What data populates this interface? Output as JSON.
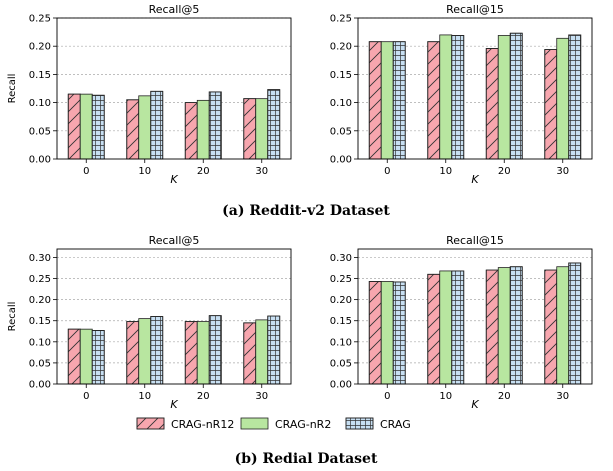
{
  "captions": {
    "top": "(a) Reddit-v2 Dataset",
    "bottom": "(b) Redial Dataset"
  },
  "legend": {
    "position": "bottom-center",
    "items": [
      {
        "label": "CRAG-nR12",
        "color": "#f7a6ae",
        "hatch": "diagonal"
      },
      {
        "label": "CRAG-nR2",
        "color": "#b8e6a0",
        "hatch": "none"
      },
      {
        "label": "CRAG",
        "color": "#c7dff2",
        "hatch": "grid"
      }
    ]
  },
  "chart_data": [
    {
      "type": "bar",
      "title": "Recall@5",
      "xlabel": "K",
      "ylabel": "Recall",
      "categories": [
        "0",
        "10",
        "20",
        "30"
      ],
      "ylim": [
        0,
        0.25
      ],
      "yticks": [
        "0.00",
        "0.05",
        "0.10",
        "0.15",
        "0.20",
        "0.25"
      ],
      "grid": "horizontal-dashed",
      "series": [
        {
          "name": "CRAG-nR12",
          "values": [
            0.115,
            0.105,
            0.1,
            0.107
          ]
        },
        {
          "name": "CRAG-nR2",
          "values": [
            0.115,
            0.112,
            0.104,
            0.107
          ]
        },
        {
          "name": "CRAG",
          "values": [
            0.113,
            0.12,
            0.119,
            0.123
          ]
        }
      ]
    },
    {
      "type": "bar",
      "title": "Recall@15",
      "xlabel": "K",
      "ylabel": "",
      "categories": [
        "0",
        "10",
        "20",
        "30"
      ],
      "ylim": [
        0,
        0.25
      ],
      "yticks": [
        "0.00",
        "0.05",
        "0.10",
        "0.15",
        "0.20",
        "0.25"
      ],
      "grid": "horizontal-dashed",
      "series": [
        {
          "name": "CRAG-nR12",
          "values": [
            0.208,
            0.208,
            0.196,
            0.194
          ]
        },
        {
          "name": "CRAG-nR2",
          "values": [
            0.208,
            0.22,
            0.219,
            0.214
          ]
        },
        {
          "name": "CRAG",
          "values": [
            0.208,
            0.219,
            0.223,
            0.22
          ]
        }
      ]
    },
    {
      "type": "bar",
      "title": "Recall@5",
      "xlabel": "K",
      "ylabel": "Recall",
      "categories": [
        "0",
        "10",
        "20",
        "30"
      ],
      "ylim": [
        0,
        0.32
      ],
      "yticks": [
        "0.00",
        "0.05",
        "0.10",
        "0.15",
        "0.20",
        "0.25",
        "0.30"
      ],
      "grid": "horizontal-dashed",
      "series": [
        {
          "name": "CRAG-nR12",
          "values": [
            0.13,
            0.148,
            0.148,
            0.145
          ]
        },
        {
          "name": "CRAG-nR2",
          "values": [
            0.13,
            0.155,
            0.148,
            0.152
          ]
        },
        {
          "name": "CRAG",
          "values": [
            0.127,
            0.16,
            0.162,
            0.161
          ]
        }
      ]
    },
    {
      "type": "bar",
      "title": "Recall@15",
      "xlabel": "K",
      "ylabel": "",
      "categories": [
        "0",
        "10",
        "20",
        "30"
      ],
      "ylim": [
        0,
        0.32
      ],
      "yticks": [
        "0.00",
        "0.05",
        "0.10",
        "0.15",
        "0.20",
        "0.25",
        "0.30"
      ],
      "grid": "horizontal-dashed",
      "series": [
        {
          "name": "CRAG-nR12",
          "values": [
            0.243,
            0.26,
            0.27,
            0.27
          ]
        },
        {
          "name": "CRAG-nR2",
          "values": [
            0.243,
            0.268,
            0.276,
            0.278
          ]
        },
        {
          "name": "CRAG",
          "values": [
            0.242,
            0.268,
            0.278,
            0.287
          ]
        }
      ]
    }
  ]
}
